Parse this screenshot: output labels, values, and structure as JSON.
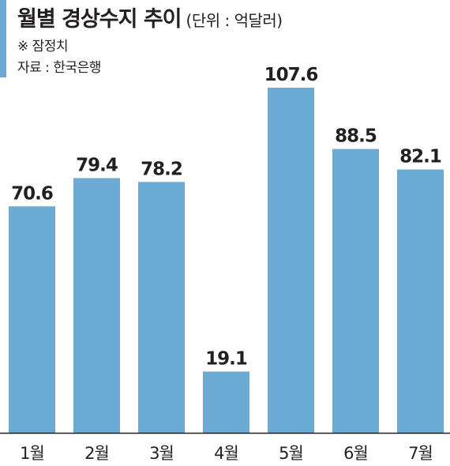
{
  "header": {
    "title": "월별 경상수지 추이",
    "unit": "(단위 : 억달러)",
    "note": "※ 잠정치",
    "source": "자료 : 한국은행"
  },
  "colors": {
    "bar": "#6aaad3",
    "accent": "#6aaad3",
    "text": "#231f20",
    "axis": "#231f20"
  },
  "chart_data": {
    "type": "bar",
    "title": "월별 경상수지 추이",
    "unit": "(단위 : 억달러)",
    "categories": [
      "1월",
      "2월",
      "3월",
      "4월",
      "5월",
      "6월",
      "7월"
    ],
    "values": [
      70.6,
      79.4,
      78.2,
      19.1,
      107.6,
      88.5,
      82.1
    ],
    "value_labels": [
      "70.6",
      "79.4",
      "78.2",
      "19.1",
      "107.6",
      "88.5",
      "82.1"
    ],
    "ylim": [
      0,
      107.6
    ],
    "grid": false,
    "legend": "none"
  }
}
